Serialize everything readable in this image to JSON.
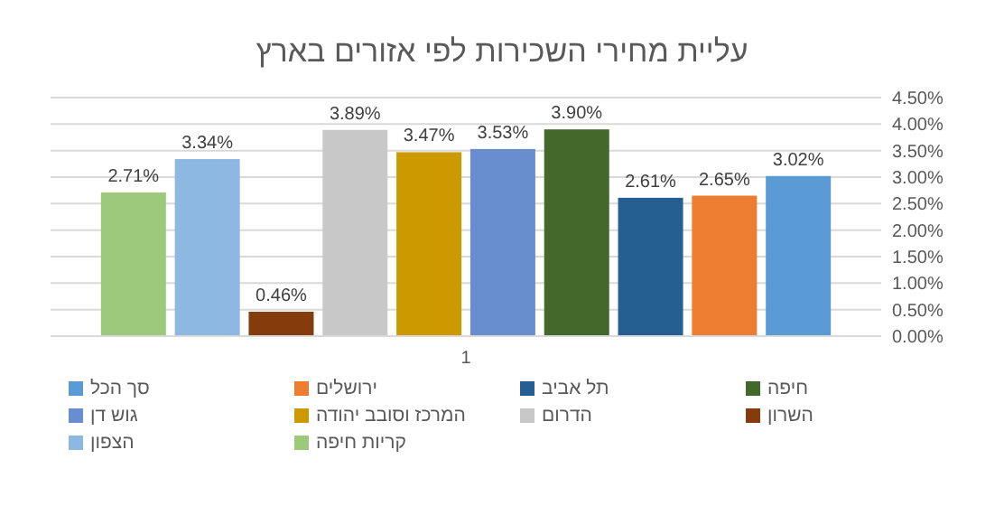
{
  "chart_data": {
    "type": "bar",
    "title": "עליית מחירי השכירות לפי אזורים בארץ",
    "categories": [
      "1"
    ],
    "series": [
      {
        "name": "קריות חיפה",
        "color": "#9dc97a",
        "values": [
          2.71
        ],
        "value_labels": [
          "2.71%"
        ]
      },
      {
        "name": "הצפון",
        "color": "#8db8e2",
        "values": [
          3.34
        ],
        "value_labels": [
          "3.34%"
        ]
      },
      {
        "name": "השרון",
        "color": "#843c0c",
        "values": [
          0.46
        ],
        "value_labels": [
          "0.46%"
        ]
      },
      {
        "name": "הדרום",
        "color": "#c8c8c8",
        "values": [
          3.89
        ],
        "value_labels": [
          "3.89%"
        ]
      },
      {
        "name": "המרכז וסובב יהודה",
        "color": "#cc9a00",
        "values": [
          3.47
        ],
        "value_labels": [
          "3.47%"
        ]
      },
      {
        "name": "גוש דן",
        "color": "#698ed0",
        "values": [
          3.53
        ],
        "value_labels": [
          "3.53%"
        ]
      },
      {
        "name": "חיפה",
        "color": "#43682b",
        "values": [
          3.9
        ],
        "value_labels": [
          "3.90%"
        ]
      },
      {
        "name": "תל אביב",
        "color": "#255e91",
        "values": [
          2.61
        ],
        "value_labels": [
          "2.61%"
        ]
      },
      {
        "name": "ירושלים",
        "color": "#ed7d31",
        "values": [
          2.65
        ],
        "value_labels": [
          "2.65%"
        ]
      },
      {
        "name": "סך הכל",
        "color": "#5b9bd5",
        "values": [
          3.02
        ],
        "value_labels": [
          "3.02%"
        ]
      }
    ],
    "ylim": [
      0,
      4.5
    ],
    "yticks": [
      {
        "value": 0,
        "label": "0.00%"
      },
      {
        "value": 0.5,
        "label": "0.50%"
      },
      {
        "value": 1,
        "label": "1.00%"
      },
      {
        "value": 1.5,
        "label": "1.50%"
      },
      {
        "value": 2,
        "label": "2.00%"
      },
      {
        "value": 2.5,
        "label": "2.50%"
      },
      {
        "value": 3,
        "label": "3.00%"
      },
      {
        "value": 3.5,
        "label": "3.50%"
      },
      {
        "value": 4,
        "label": "4.00%"
      },
      {
        "value": 4.5,
        "label": "4.50%"
      }
    ],
    "grid": "y",
    "legend": "bottom"
  }
}
